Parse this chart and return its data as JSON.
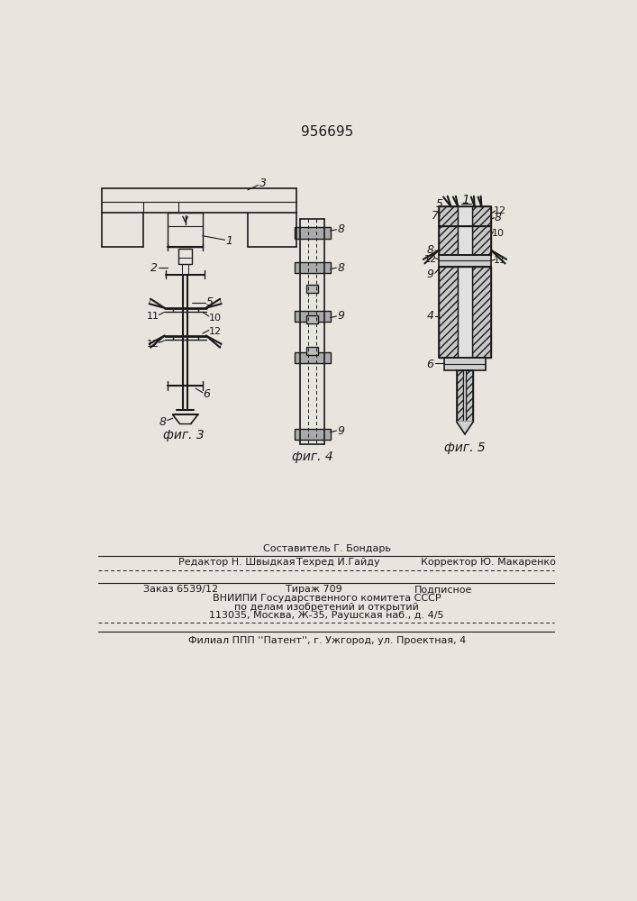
{
  "patent_number": "956695",
  "bg_color": "#e8e4de",
  "line_color": "#1a1a1a",
  "fig3_label": "фиг. 3",
  "fig4_label": "фиг. 4",
  "fig5_label": "фиг. 5",
  "footer_line1": "Составитель Г. Бондарь",
  "footer_line2a": "Редактор Н. Швыдкая",
  "footer_line2b": "Техред И.Гайду",
  "footer_line2c": "Корректор Ю. Макаренко",
  "footer_line3a": "Заказ 6539/12",
  "footer_line3b": "Тираж 709",
  "footer_line3c": "Подписное",
  "footer_line4": "ВНИИПИ Государственного комитета СССР",
  "footer_line5": "по делам изобретений и открытий",
  "footer_line6": "113035, Москва, Ж-35, Раушская наб., д. 4/5",
  "footer_line7": "Филиал ППП ''Патент'', г. Ужгород, ул. Проектная, 4"
}
